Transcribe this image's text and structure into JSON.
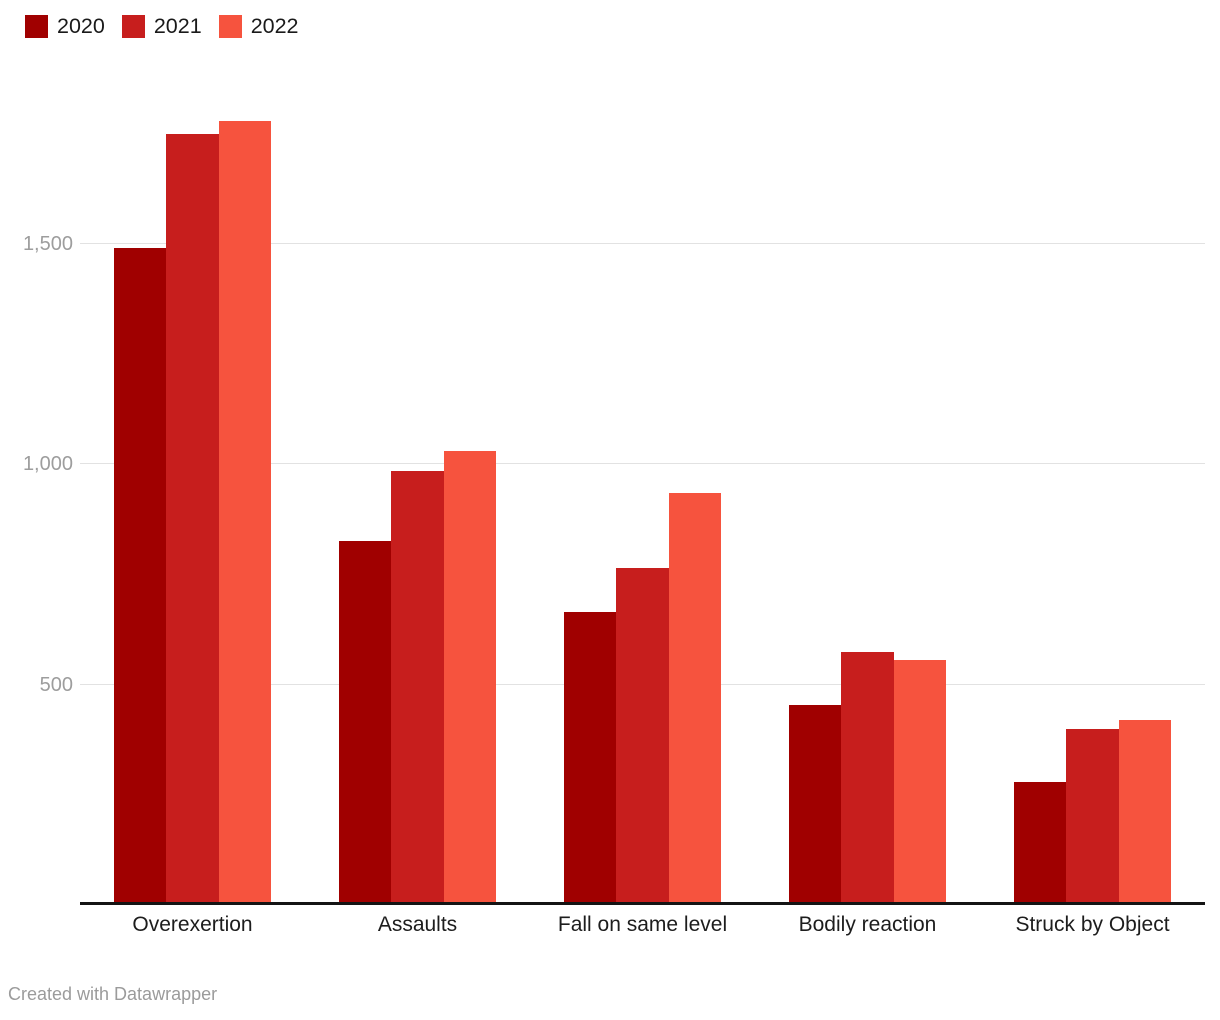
{
  "footer": {
    "credit": "Created with Datawrapper"
  },
  "colors": {
    "background": "#ffffff",
    "gridline": "#e2e2e2",
    "axis_line": "#141414",
    "tick_label": "#9d9d9d",
    "category_label": "#1d1d1d",
    "legend_label": "#1a1a1a",
    "footer_text": "#9b9b9b"
  },
  "chart_data": {
    "type": "bar",
    "grouped": true,
    "title": "",
    "xlabel": "",
    "ylabel": "",
    "grid": "horizontal",
    "legend_position": "top-left",
    "categories": [
      "Overexertion",
      "Assaults",
      "Fall on same level",
      "Bodily reaction",
      "Struck by Object"
    ],
    "series": [
      {
        "name": "2020",
        "color": "#a00000",
        "values": [
          1490,
          825,
          665,
          455,
          280
        ]
      },
      {
        "name": "2021",
        "color": "#c71e1d",
        "values": [
          1750,
          985,
          765,
          575,
          400
        ]
      },
      {
        "name": "2022",
        "color": "#f6533e",
        "values": [
          1780,
          1030,
          935,
          555,
          420
        ]
      }
    ],
    "yticks": [
      500,
      1000,
      1500
    ],
    "ytick_labels": [
      "500",
      "1,000",
      "1,500"
    ],
    "ylim": [
      0,
      1800
    ]
  }
}
